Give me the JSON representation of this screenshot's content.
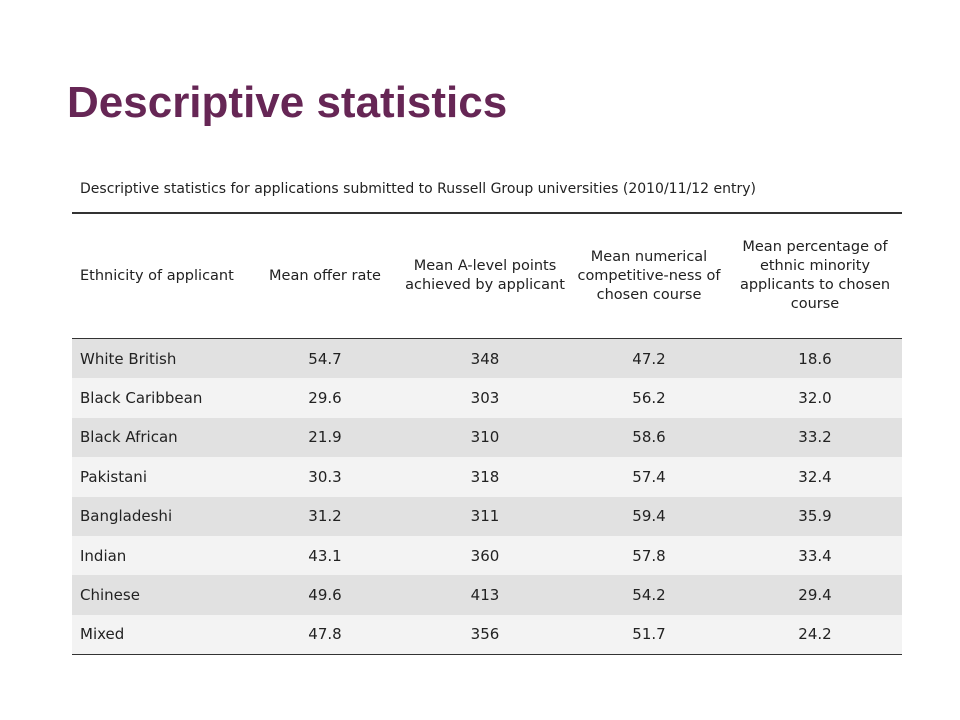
{
  "slide": {
    "title": "Descriptive statistics"
  },
  "table": {
    "caption": "Descriptive statistics for applications submitted to Russell Group universities (2010/11/12 entry)",
    "headers": [
      "Ethnicity of applicant",
      "Mean offer rate",
      "Mean A-level points achieved by applicant",
      "Mean numerical competitive-ness of chosen course",
      "Mean percentage of ethnic minority applicants to chosen course"
    ],
    "rows": [
      [
        "White British",
        "54.7",
        "348",
        "47.2",
        "18.6"
      ],
      [
        "Black Caribbean",
        "29.6",
        "303",
        "56.2",
        "32.0"
      ],
      [
        "Black African",
        "21.9",
        "310",
        "58.6",
        "33.2"
      ],
      [
        "Pakistani",
        "30.3",
        "318",
        "57.4",
        "32.4"
      ],
      [
        "Bangladeshi",
        "31.2",
        "311",
        "59.4",
        "35.9"
      ],
      [
        "Indian",
        "43.1",
        "360",
        "57.8",
        "33.4"
      ],
      [
        "Chinese",
        "49.6",
        "413",
        "54.2",
        "29.4"
      ],
      [
        "Mixed",
        "47.8",
        "356",
        "51.7",
        "24.2"
      ]
    ]
  },
  "colors": {
    "title": "#662655",
    "row_band_dark": "#e1e1e1",
    "row_band_light": "#f3f3f3",
    "rule": "#333333"
  }
}
